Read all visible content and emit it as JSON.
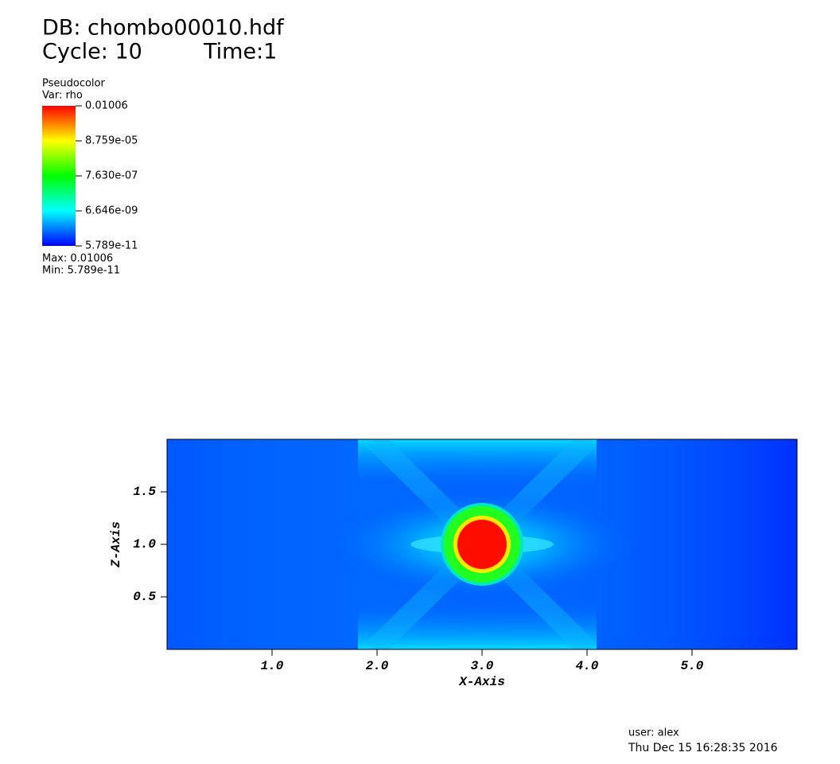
{
  "header": {
    "db": "DB: chombo00010.hdf",
    "cycle": "Cycle: 10",
    "time": "Time:1"
  },
  "chart_data": {
    "type": "pseudocolor",
    "plot_name": "Pseudocolor",
    "variable": "Var: rho",
    "max_label": "Max:  0.01006",
    "min_label": "Min:  5.789e-11",
    "colorbar": {
      "scale": "log",
      "colors": [
        "#0000ff",
        "#00ffff",
        "#00ff00",
        "#ffff00",
        "#ff0000"
      ],
      "lim": [
        5.789e-11,
        0.01006
      ],
      "ticks": [
        {
          "value": 0.01006,
          "label": "0.01006"
        },
        {
          "value": 8.759e-05,
          "label": "8.759e-05"
        },
        {
          "value": 7.63e-07,
          "label": "7.630e-07"
        },
        {
          "value": 6.646e-09,
          "label": "6.646e-09"
        },
        {
          "value": 5.789e-11,
          "label": "5.789e-11"
        }
      ]
    },
    "x_label": "X-Axis",
    "y_label": "Z-Axis",
    "xlim": [
      0,
      6
    ],
    "ylim": [
      0,
      2
    ],
    "xticks": [
      {
        "value": 1,
        "label": "1.0"
      },
      {
        "value": 2,
        "label": "2.0"
      },
      {
        "value": 3,
        "label": "3.0"
      },
      {
        "value": 4,
        "label": "4.0"
      },
      {
        "value": 5,
        "label": "5.0"
      }
    ],
    "yticks": [
      {
        "value": 0.5,
        "label": "0.5"
      },
      {
        "value": 1,
        "label": "1.0"
      },
      {
        "value": 1.5,
        "label": "1.5"
      }
    ]
  },
  "footer": {
    "user": "user: alex",
    "date": "Thu Dec 15 16:28:35 2016"
  }
}
